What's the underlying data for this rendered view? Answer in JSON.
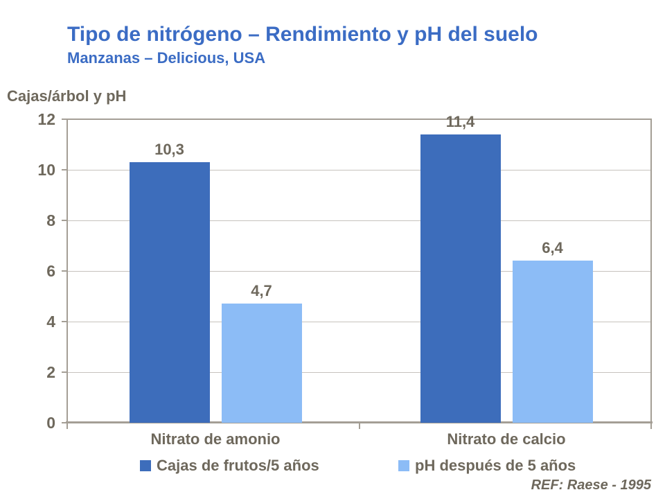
{
  "page": {
    "title": "Tipo de nitrógeno – Rendimiento y pH del suelo",
    "subtitle": "Manzanas – Delicious, USA",
    "ref": "REF: Raese - 1995"
  },
  "colors": {
    "title_blue": "#3B6CC4",
    "text_gray": "#6E685C",
    "series1": "#3D6DBB",
    "series2": "#8CBCF6",
    "gridline": "#C6C2BD",
    "axis": "#A49E95"
  },
  "chart_data": {
    "type": "bar",
    "title": "Tipo de nitrógeno – Rendimiento y pH del suelo",
    "subtitle": "Manzanas – Delicious, USA",
    "ylabel": "Cajas/árbol y pH",
    "xlabel": "",
    "categories": [
      "Nitrato de amonio",
      "Nitrato de calcio"
    ],
    "series": [
      {
        "name": "Cajas de frutos/5 años",
        "values": [
          10.3,
          11.4
        ],
        "value_labels": [
          "10,3",
          "11,4"
        ],
        "color_key": "series1"
      },
      {
        "name": "pH después de 5 años",
        "values": [
          4.7,
          6.4
        ],
        "value_labels": [
          "4,7",
          "6,4"
        ],
        "color_key": "series2"
      }
    ],
    "ylim": [
      0,
      12
    ],
    "yticks": [
      0,
      2,
      4,
      6,
      8,
      10,
      12
    ],
    "grid": true,
    "legend_position": "bottom",
    "annotation": "REF: Raese - 1995"
  }
}
